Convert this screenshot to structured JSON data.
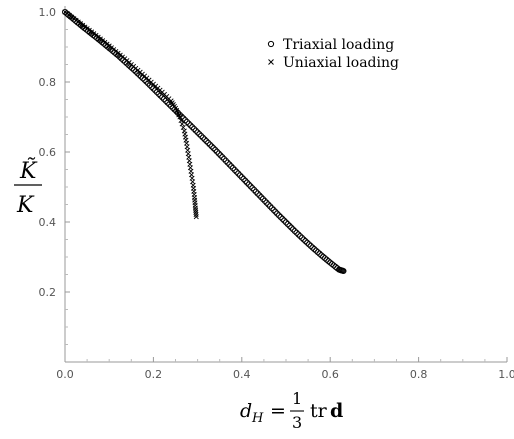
{
  "chart_data": {
    "type": "scatter",
    "xlim": [
      0.0,
      1.0
    ],
    "ylim": [
      0.0,
      1.0
    ],
    "x_ticks": [
      "0.0",
      "0.2",
      "0.4",
      "0.6",
      "0.8",
      "1.0"
    ],
    "y_ticks": [
      "0.2",
      "0.4",
      "0.6",
      "0.8",
      "1.0"
    ],
    "y_tick_values": [
      0.2,
      0.4,
      0.6,
      0.8,
      1.0
    ],
    "x_tick_values": [
      0.0,
      0.2,
      0.4,
      0.6,
      0.8,
      1.0
    ],
    "ylabel_num": "K̃",
    "ylabel_den": "K",
    "xlabel": {
      "var": "d",
      "sub": "H",
      "eq": "=",
      "num": "1",
      "den": "3",
      "op": "tr",
      "arg": "d"
    },
    "legend_position": "top-right",
    "grid": false,
    "series": [
      {
        "name": "Triaxial loading",
        "marker": "circle",
        "color": "#000000",
        "x": [
          0.0,
          0.02,
          0.04,
          0.06,
          0.08,
          0.1,
          0.12,
          0.14,
          0.16,
          0.18,
          0.2,
          0.22,
          0.24,
          0.26,
          0.28,
          0.3,
          0.32,
          0.34,
          0.36,
          0.38,
          0.4,
          0.42,
          0.44,
          0.46,
          0.48,
          0.5,
          0.52,
          0.54,
          0.56,
          0.58,
          0.6,
          0.62,
          0.63
        ],
        "y": [
          1.0,
          0.979,
          0.958,
          0.938,
          0.918,
          0.897,
          0.876,
          0.853,
          0.83,
          0.806,
          0.781,
          0.756,
          0.731,
          0.706,
          0.681,
          0.656,
          0.631,
          0.606,
          0.58,
          0.554,
          0.528,
          0.502,
          0.476,
          0.45,
          0.424,
          0.399,
          0.374,
          0.35,
          0.327,
          0.305,
          0.284,
          0.264,
          0.26
        ]
      },
      {
        "name": "Uniaxial loading",
        "marker": "cross",
        "color": "#000000",
        "x": [
          0.0,
          0.02,
          0.04,
          0.06,
          0.08,
          0.1,
          0.12,
          0.14,
          0.16,
          0.18,
          0.2,
          0.22,
          0.24,
          0.25,
          0.26,
          0.27,
          0.275,
          0.28,
          0.285,
          0.29,
          0.293,
          0.295,
          0.297
        ],
        "y": [
          1.0,
          0.981,
          0.962,
          0.943,
          0.923,
          0.903,
          0.882,
          0.861,
          0.839,
          0.817,
          0.794,
          0.771,
          0.746,
          0.725,
          0.7,
          0.66,
          0.625,
          0.585,
          0.545,
          0.505,
          0.47,
          0.44,
          0.415
        ]
      }
    ]
  }
}
